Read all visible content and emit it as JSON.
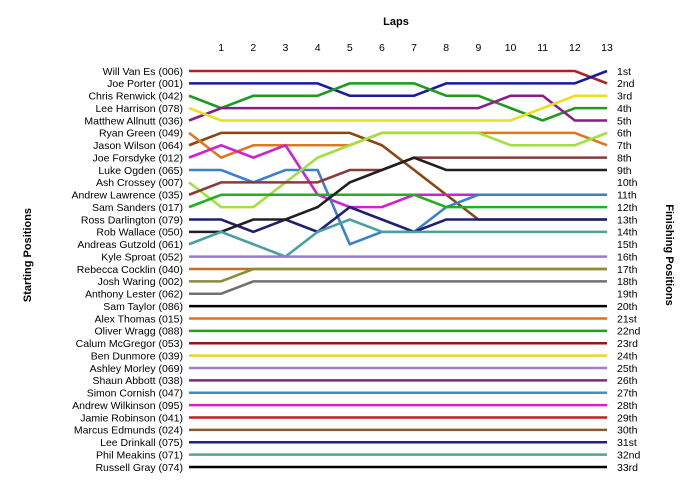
{
  "chart_data": {
    "type": "line",
    "title": "",
    "xlabel": "Laps",
    "ylabel_left": "Starting Positions",
    "ylabel_right": "Finishing Positions",
    "laps": [
      1,
      2,
      3,
      4,
      5,
      6,
      7,
      8,
      9,
      10,
      11,
      12,
      13
    ],
    "xlim": [
      0,
      13
    ],
    "ylim": [
      1,
      33
    ],
    "grid": false,
    "finish_labels": [
      "1st",
      "2nd",
      "3rd",
      "4th",
      "5th",
      "6th",
      "7th",
      "8th",
      "9th",
      "10th",
      "11th",
      "12th",
      "13th",
      "14th",
      "15th",
      "16th",
      "17th",
      "18th",
      "19th",
      "20th",
      "21st",
      "22nd",
      "23rd",
      "24th",
      "25th",
      "26th",
      "27th",
      "28th",
      "29th",
      "30th",
      "31st",
      "32nd",
      "33rd"
    ],
    "series": [
      {
        "name": "Will Van Es (006)",
        "color": "#b22222",
        "positions": [
          1,
          1,
          1,
          1,
          1,
          1,
          1,
          1,
          1,
          1,
          1,
          1,
          1,
          2
        ]
      },
      {
        "name": "Joe Porter (001)",
        "color": "#1a1aa0",
        "positions": [
          2,
          2,
          2,
          2,
          2,
          3,
          3,
          3,
          2,
          2,
          2,
          2,
          2,
          1
        ]
      },
      {
        "name": "Chris Renwick (042)",
        "color": "#1e9a1e",
        "positions": [
          3,
          4,
          3,
          3,
          3,
          2,
          2,
          2,
          3,
          3,
          4,
          5,
          4,
          4
        ]
      },
      {
        "name": "Lee Harrison (078)",
        "color": "#8b1a8b",
        "positions": [
          5,
          4,
          4,
          4,
          4,
          4,
          4,
          4,
          4,
          4,
          3,
          3,
          5,
          5
        ]
      },
      {
        "name": "Matthew Allnutt (036)",
        "color": "#e8e020",
        "positions": [
          4,
          5,
          5,
          5,
          5,
          5,
          5,
          5,
          5,
          5,
          5,
          4,
          3,
          3
        ]
      },
      {
        "name": "Ryan Green (049)",
        "color": "#8b4513",
        "positions": [
          7,
          6,
          6,
          6,
          6,
          6,
          7,
          9,
          11,
          13,
          13,
          13,
          13,
          13
        ]
      },
      {
        "name": "Jason Wilson (064)",
        "color": "#e07820",
        "positions": [
          6,
          8,
          7,
          7,
          7,
          7,
          6,
          6,
          6,
          6,
          6,
          6,
          6,
          7
        ]
      },
      {
        "name": "Joe Forsdyke (012)",
        "color": "#d020d0",
        "positions": [
          8,
          7,
          8,
          7,
          11,
          12,
          12,
          11,
          11,
          11,
          11,
          11,
          11,
          11
        ]
      },
      {
        "name": "Luke Ogden (065)",
        "color": "#3a7fd0",
        "positions": [
          9,
          9,
          10,
          9,
          9,
          15,
          14,
          14,
          12,
          11,
          11,
          11,
          11,
          11
        ]
      },
      {
        "name": "Ash Crossey (007)",
        "color": "#a0e040",
        "positions": [
          10,
          12,
          12,
          10,
          8,
          7,
          6,
          6,
          6,
          6,
          7,
          7,
          7,
          6
        ]
      },
      {
        "name": "Andrew Lawrence (035)",
        "color": "#8b3a3a",
        "positions": [
          11,
          10,
          10,
          10,
          10,
          9,
          9,
          8,
          8,
          8,
          8,
          8,
          8,
          8
        ]
      },
      {
        "name": "Sam Sanders (017)",
        "color": "#20b020",
        "positions": [
          12,
          11,
          11,
          11,
          11,
          11,
          11,
          11,
          12,
          12,
          12,
          12,
          12,
          12
        ]
      },
      {
        "name": "Ross Darlington (079)",
        "color": "#202070",
        "positions": [
          13,
          13,
          14,
          13,
          14,
          12,
          13,
          14,
          13,
          13,
          13,
          13,
          13,
          13
        ]
      },
      {
        "name": "Rob Wallace (050)",
        "color": "#202020",
        "positions": [
          14,
          14,
          13,
          13,
          12,
          10,
          9,
          8,
          9,
          9,
          9,
          9,
          9,
          9
        ]
      },
      {
        "name": "Andreas Gutzold (061)",
        "color": "#4aa0a0",
        "positions": [
          15,
          14,
          15,
          16,
          14,
          13,
          14,
          14,
          14,
          14,
          14,
          14,
          14,
          14
        ]
      },
      {
        "name": "Kyle Sproat (052)",
        "color": "#9a7ad0",
        "positions": [
          16,
          16,
          16,
          16,
          16,
          16,
          16,
          16,
          16,
          16,
          16,
          16,
          16,
          16
        ]
      },
      {
        "name": "Rebecca Cocklin (040)",
        "color": "#c07020",
        "positions": [
          17,
          17,
          17,
          17,
          17,
          17,
          17,
          17,
          17,
          17,
          17,
          17,
          17,
          17
        ]
      },
      {
        "name": "Josh Waring (002)",
        "color": "#8b8b3a",
        "positions": [
          18,
          18,
          17,
          17,
          17,
          17,
          17,
          17,
          17,
          17,
          17,
          17,
          17,
          17
        ]
      },
      {
        "name": "Anthony Lester (062)",
        "color": "#707070",
        "positions": [
          19,
          19,
          18,
          18,
          18,
          18,
          18,
          18,
          18,
          18,
          18,
          18,
          18,
          18
        ]
      },
      {
        "name": "Sam Taylor (086)",
        "color": "#000000",
        "positions": [
          20,
          20,
          20,
          20,
          20,
          20,
          20,
          20,
          20,
          20,
          20,
          20,
          20,
          20
        ]
      },
      {
        "name": "Alex Thomas (015)",
        "color": "#e07020",
        "positions": [
          21,
          21,
          21,
          21,
          21,
          21,
          21,
          21,
          21,
          21,
          21,
          21,
          21,
          21
        ]
      },
      {
        "name": "Oliver Wragg (088)",
        "color": "#20a020",
        "positions": [
          22,
          22,
          22,
          22,
          22,
          22,
          22,
          22,
          22,
          22,
          22,
          22,
          22,
          22
        ]
      },
      {
        "name": "Calum McGregor (053)",
        "color": "#8b1a1a",
        "positions": [
          23,
          23,
          23,
          23,
          23,
          23,
          23,
          23,
          23,
          23,
          23,
          23,
          23,
          23
        ]
      },
      {
        "name": "Ben Dunmore (039)",
        "color": "#e8d820",
        "positions": [
          24,
          24,
          24,
          24,
          24,
          24,
          24,
          24,
          24,
          24,
          24,
          24,
          24,
          24
        ]
      },
      {
        "name": "Ashley Morley (069)",
        "color": "#a080c0",
        "positions": [
          25,
          25,
          25,
          25,
          25,
          25,
          25,
          25,
          25,
          25,
          25,
          25,
          25,
          25
        ]
      },
      {
        "name": "Shaun Abbott (038)",
        "color": "#8b2090",
        "positions": [
          26,
          26,
          26,
          26,
          26,
          26,
          26,
          26,
          26,
          26,
          26,
          26,
          26,
          26
        ]
      },
      {
        "name": "Simon Cornish (047)",
        "color": "#3a8fd0",
        "positions": [
          27,
          27,
          27,
          27,
          27,
          27,
          27,
          27,
          27,
          27,
          27,
          27,
          27,
          27
        ]
      },
      {
        "name": "Andrew Wilkinson (095)",
        "color": "#d020d0",
        "positions": [
          28,
          28,
          28,
          28,
          28,
          28,
          28,
          28,
          28,
          28,
          28,
          28,
          28,
          28
        ]
      },
      {
        "name": "Jamie Robinson (041)",
        "color": "#c02020",
        "positions": [
          29,
          29,
          29,
          29,
          29,
          29,
          29,
          29,
          29,
          29,
          29,
          29,
          29,
          29
        ]
      },
      {
        "name": "Marcus Edmunds (024)",
        "color": "#8b5a2b",
        "positions": [
          30,
          30,
          30,
          30,
          30,
          30,
          30,
          30,
          30,
          30,
          30,
          30,
          30,
          30
        ]
      },
      {
        "name": "Lee Drinkall (075)",
        "color": "#202080",
        "positions": [
          31,
          31,
          31,
          31,
          31,
          31,
          31,
          31,
          31,
          31,
          31,
          31,
          31,
          31
        ]
      },
      {
        "name": "Phil Meakins (071)",
        "color": "#5aa090",
        "positions": [
          32,
          32,
          32,
          32,
          32,
          32,
          32,
          32,
          32,
          32,
          32,
          32,
          32,
          32
        ]
      },
      {
        "name": "Russell Gray (074)",
        "color": "#000000",
        "positions": [
          33,
          33,
          33,
          33,
          33,
          33,
          33,
          33,
          33,
          33,
          33,
          33,
          33,
          33
        ]
      }
    ]
  }
}
